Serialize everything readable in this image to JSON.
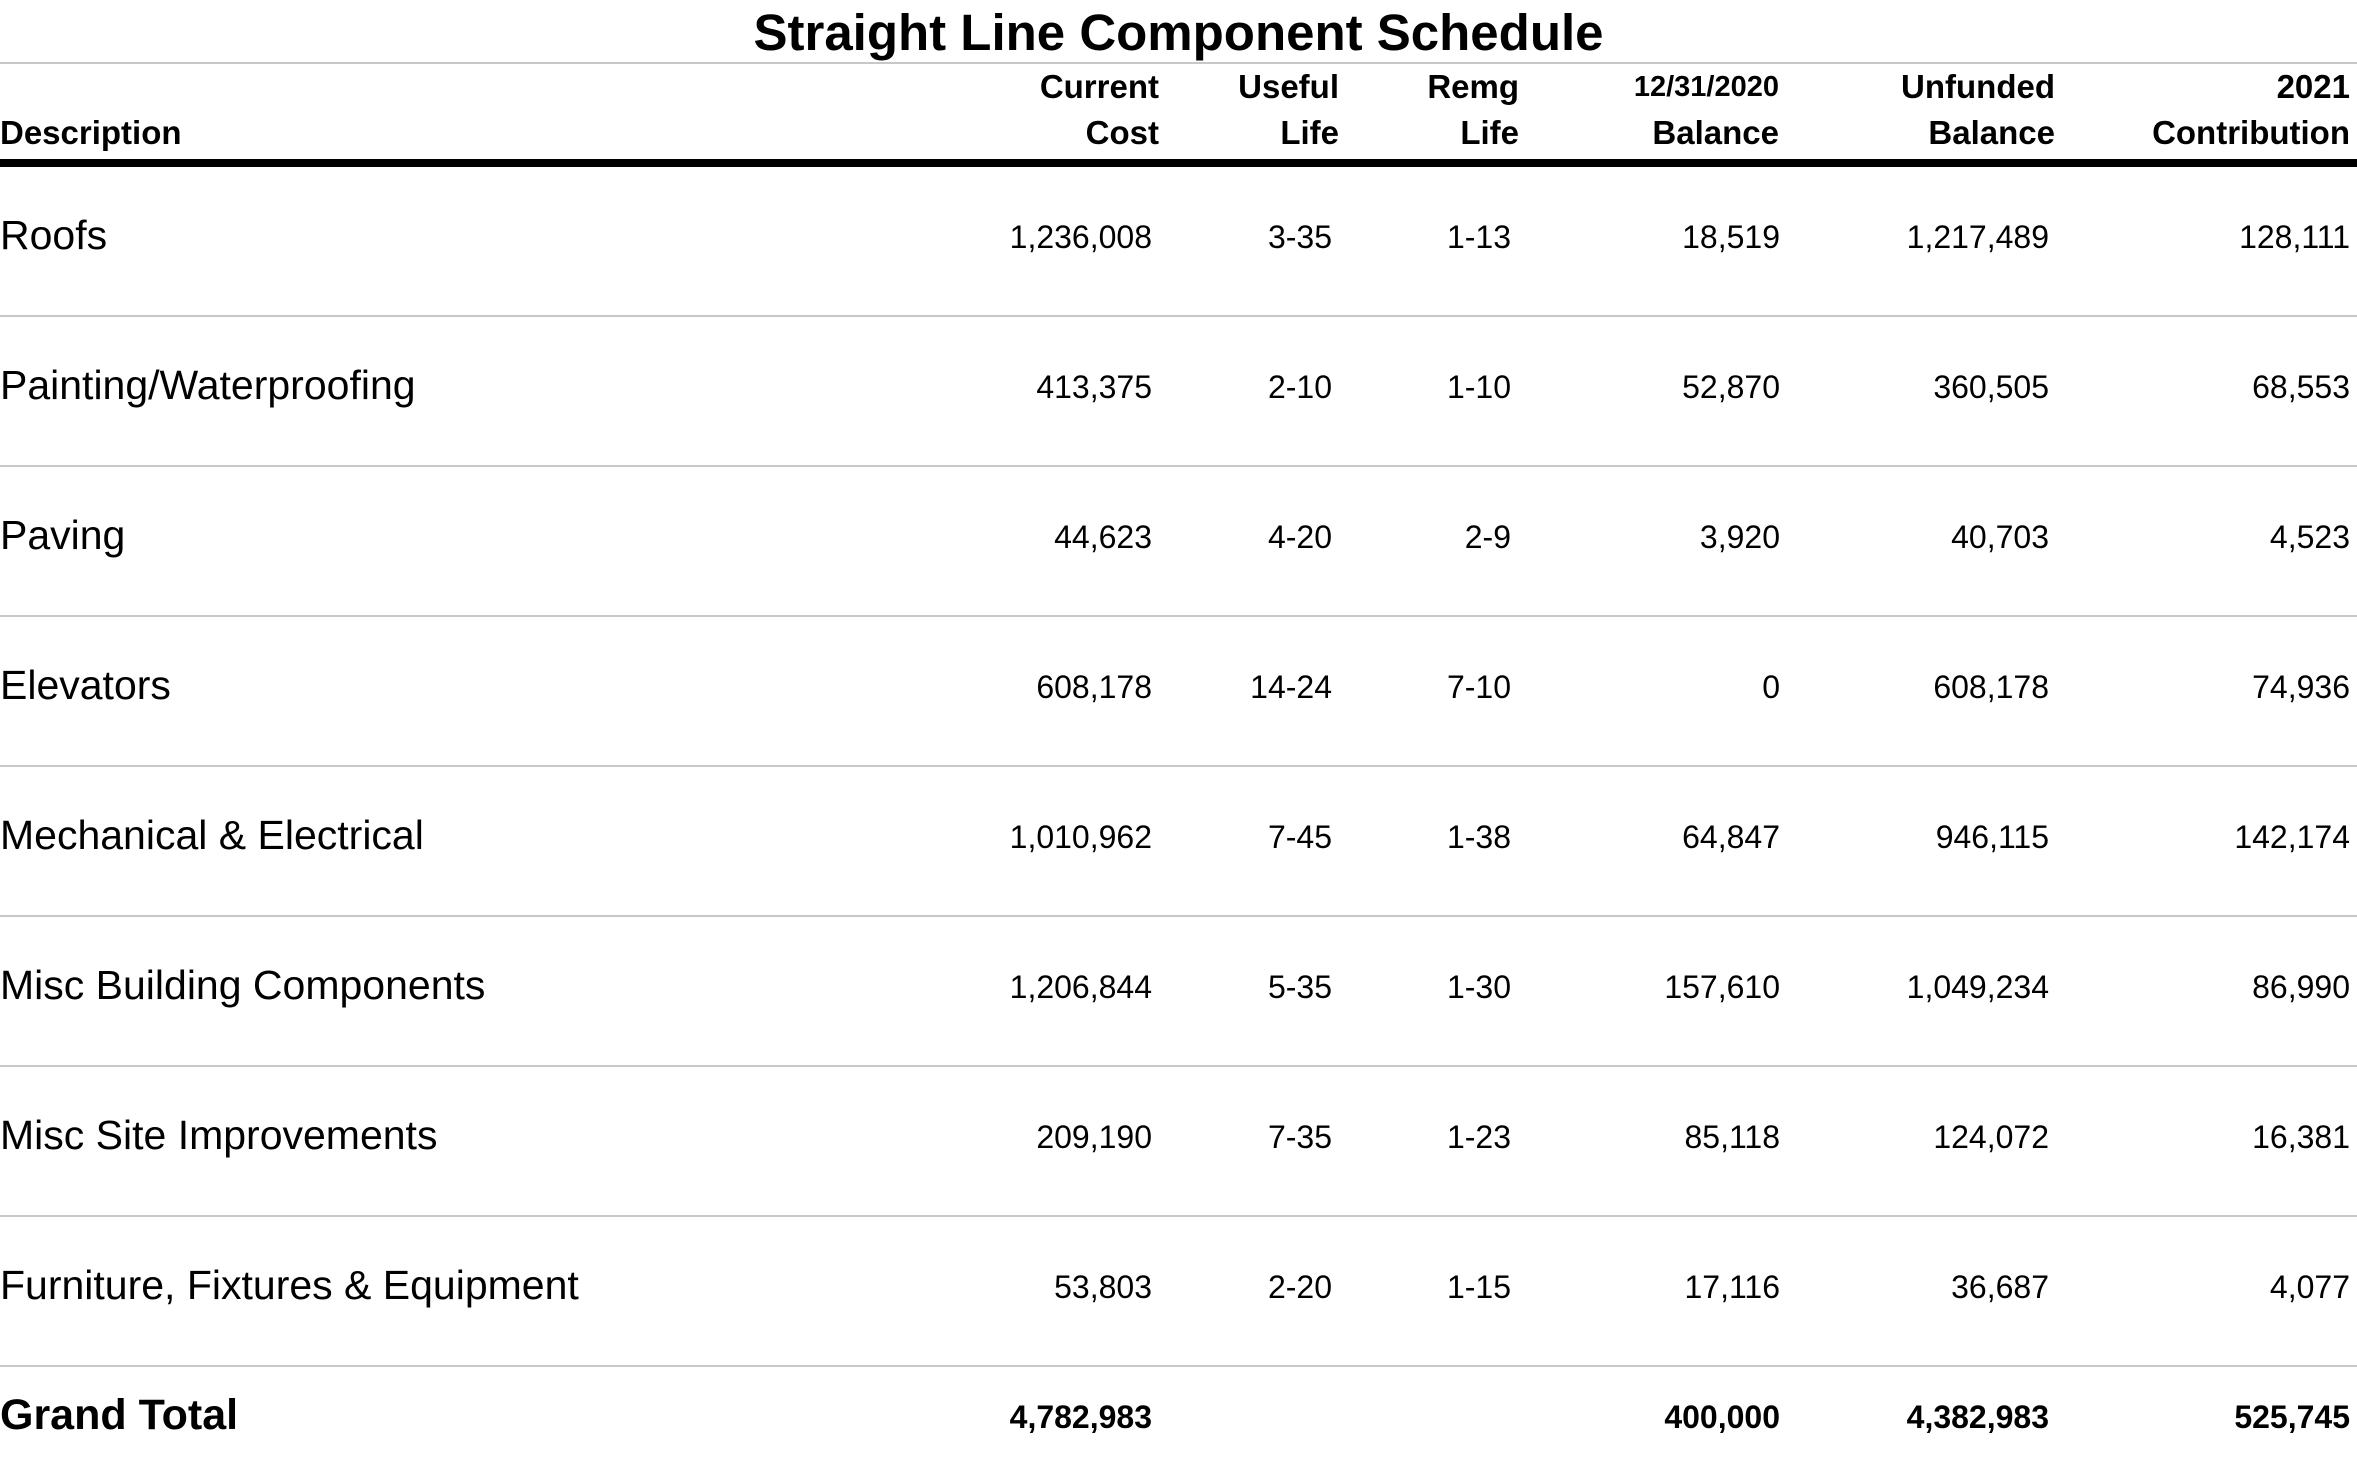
{
  "title": "Straight Line Component Schedule",
  "columns": {
    "description": "Description",
    "current_cost": [
      "Current",
      "Cost"
    ],
    "useful_life": [
      "Useful",
      "Life"
    ],
    "remg_life": [
      "Remg",
      "Life"
    ],
    "balance": [
      "12/31/2020",
      "Balance"
    ],
    "unfunded_balance": [
      "Unfunded",
      "Balance"
    ],
    "contribution": [
      "2021",
      "Contribution"
    ]
  },
  "rows": [
    {
      "description": "Roofs",
      "current_cost": "1,236,008",
      "useful_life": "3-35",
      "remg_life": "1-13",
      "balance": "18,519",
      "unfunded_balance": "1,217,489",
      "contribution": "128,111"
    },
    {
      "description": "Painting/Waterproofing",
      "current_cost": "413,375",
      "useful_life": "2-10",
      "remg_life": "1-10",
      "balance": "52,870",
      "unfunded_balance": "360,505",
      "contribution": "68,553"
    },
    {
      "description": "Paving",
      "current_cost": "44,623",
      "useful_life": "4-20",
      "remg_life": "2-9",
      "balance": "3,920",
      "unfunded_balance": "40,703",
      "contribution": "4,523"
    },
    {
      "description": "Elevators",
      "current_cost": "608,178",
      "useful_life": "14-24",
      "remg_life": "7-10",
      "balance": "0",
      "unfunded_balance": "608,178",
      "contribution": "74,936"
    },
    {
      "description": "Mechanical & Electrical",
      "current_cost": "1,010,962",
      "useful_life": "7-45",
      "remg_life": "1-38",
      "balance": "64,847",
      "unfunded_balance": "946,115",
      "contribution": "142,174"
    },
    {
      "description": "Misc Building Components",
      "current_cost": "1,206,844",
      "useful_life": "5-35",
      "remg_life": "1-30",
      "balance": "157,610",
      "unfunded_balance": "1,049,234",
      "contribution": "86,990"
    },
    {
      "description": "Misc Site Improvements",
      "current_cost": "209,190",
      "useful_life": "7-35",
      "remg_life": "1-23",
      "balance": "85,118",
      "unfunded_balance": "124,072",
      "contribution": "16,381"
    },
    {
      "description": "Furniture, Fixtures & Equipment",
      "current_cost": "53,803",
      "useful_life": "2-20",
      "remg_life": "1-15",
      "balance": "17,116",
      "unfunded_balance": "36,687",
      "contribution": "4,077"
    }
  ],
  "total": {
    "description": "Grand Total",
    "current_cost": "4,782,983",
    "balance": "400,000",
    "unfunded_balance": "4,382,983",
    "contribution": "525,745"
  }
}
